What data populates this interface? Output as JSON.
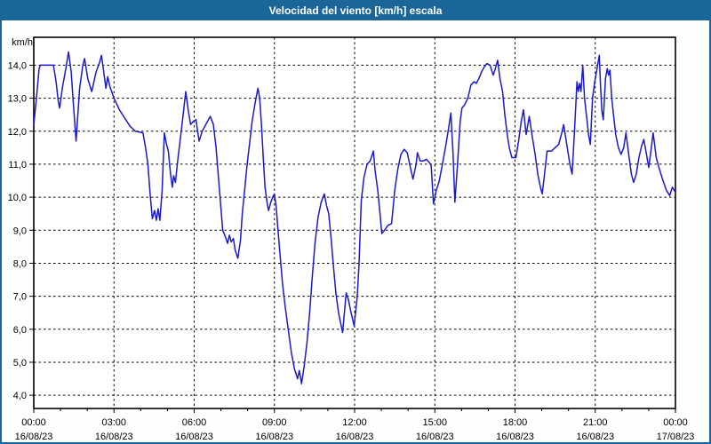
{
  "window": {
    "title": "Velocidad del viento [km/h] escala"
  },
  "colors": {
    "titlebar_bg": "#1b6698",
    "window_border": "#1b6698",
    "content_bg": "#fdfefd",
    "plot_bg": "#ffffff",
    "plot_border": "#000000",
    "grid": "#000000",
    "series_line": "#1a1ac9",
    "label_text": "#000000"
  },
  "chart_data": {
    "type": "line",
    "title": "Velocidad del viento [km/h] escala",
    "ylabel": "km/h",
    "unit_label": "km/h",
    "grid": "dashed",
    "legend": "none",
    "xlim_minutes": [
      0,
      1440
    ],
    "ylim": [
      3.6,
      14.845
    ],
    "y_ticks": [
      {
        "label": "14,0",
        "value": 14.0
      },
      {
        "label": "13,0",
        "value": 13.0
      },
      {
        "label": "12,0",
        "value": 12.0
      },
      {
        "label": "11,0",
        "value": 11.0
      },
      {
        "label": "10,0",
        "value": 10.0
      },
      {
        "label": "9,0",
        "value": 9.0
      },
      {
        "label": "8,0",
        "value": 8.0
      },
      {
        "label": "7,0",
        "value": 7.0
      },
      {
        "label": "6,0",
        "value": 6.0
      },
      {
        "label": "5,0",
        "value": 5.0
      },
      {
        "label": "4,0",
        "value": 4.0
      }
    ],
    "x_ticks": [
      {
        "hour": 0,
        "time": "00:00",
        "date": "16/08/23"
      },
      {
        "hour": 3,
        "time": "03:00",
        "date": "16/08/23"
      },
      {
        "hour": 6,
        "time": "06:00",
        "date": "16/08/23"
      },
      {
        "hour": 9,
        "time": "09:00",
        "date": "16/08/23"
      },
      {
        "hour": 12,
        "time": "12:00",
        "date": "16/08/23"
      },
      {
        "hour": 15,
        "time": "15:00",
        "date": "16/08/23"
      },
      {
        "hour": 18,
        "time": "18:00",
        "date": "16/08/23"
      },
      {
        "hour": 21,
        "time": "21:00",
        "date": "16/08/23"
      },
      {
        "hour": 24,
        "time": "00:00",
        "date": "17/08/23"
      }
    ],
    "minor_x_tick_every_hours": 1,
    "series": [
      {
        "name": "Velocidad del viento",
        "color": "#1a1ac9",
        "points": [
          [
            0,
            12.2
          ],
          [
            6,
            13.0
          ],
          [
            12,
            13.9
          ],
          [
            15,
            14.0
          ],
          [
            44,
            14.0
          ],
          [
            50,
            13.5
          ],
          [
            55,
            12.9
          ],
          [
            58,
            12.7
          ],
          [
            64,
            13.3
          ],
          [
            72,
            13.9
          ],
          [
            78,
            14.4
          ],
          [
            84,
            13.8
          ],
          [
            88,
            13.0
          ],
          [
            95,
            11.7
          ],
          [
            103,
            13.3
          ],
          [
            110,
            14.0
          ],
          [
            114,
            14.2
          ],
          [
            121,
            13.6
          ],
          [
            130,
            13.2
          ],
          [
            140,
            13.8
          ],
          [
            148,
            14.1
          ],
          [
            152,
            14.3
          ],
          [
            158,
            13.7
          ],
          [
            162,
            13.3
          ],
          [
            166,
            13.65
          ],
          [
            171,
            13.35
          ],
          [
            180,
            13.0
          ],
          [
            192,
            12.65
          ],
          [
            204,
            12.4
          ],
          [
            216,
            12.15
          ],
          [
            228,
            12.0
          ],
          [
            245,
            11.95
          ],
          [
            251,
            11.5
          ],
          [
            256,
            11.0
          ],
          [
            261,
            10.1
          ],
          [
            266,
            9.35
          ],
          [
            271,
            9.6
          ],
          [
            275,
            9.3
          ],
          [
            279,
            9.65
          ],
          [
            283,
            9.3
          ],
          [
            288,
            10.2
          ],
          [
            293,
            11.95
          ],
          [
            298,
            11.6
          ],
          [
            302,
            11.4
          ],
          [
            307,
            10.7
          ],
          [
            311,
            10.3
          ],
          [
            314,
            10.65
          ],
          [
            318,
            10.45
          ],
          [
            323,
            11.1
          ],
          [
            330,
            11.9
          ],
          [
            336,
            12.6
          ],
          [
            341,
            13.2
          ],
          [
            347,
            12.6
          ],
          [
            352,
            12.2
          ],
          [
            358,
            12.3
          ],
          [
            364,
            12.35
          ],
          [
            371,
            11.7
          ],
          [
            378,
            12.0
          ],
          [
            390,
            12.3
          ],
          [
            396,
            12.45
          ],
          [
            403,
            12.2
          ],
          [
            409,
            11.5
          ],
          [
            415,
            10.5
          ],
          [
            421,
            9.5
          ],
          [
            424,
            9.0
          ],
          [
            430,
            8.8
          ],
          [
            435,
            8.6
          ],
          [
            439,
            8.85
          ],
          [
            443,
            8.65
          ],
          [
            448,
            8.75
          ],
          [
            452,
            8.4
          ],
          [
            458,
            8.15
          ],
          [
            464,
            8.7
          ],
          [
            468,
            9.5
          ],
          [
            473,
            10.2
          ],
          [
            478,
            10.9
          ],
          [
            484,
            11.6
          ],
          [
            490,
            12.3
          ],
          [
            496,
            12.8
          ],
          [
            503,
            13.3
          ],
          [
            507,
            13.0
          ],
          [
            511,
            12.2
          ],
          [
            515,
            11.2
          ],
          [
            519,
            10.3
          ],
          [
            524,
            9.8
          ],
          [
            527,
            9.6
          ],
          [
            532,
            9.85
          ],
          [
            538,
            10.05
          ],
          [
            540,
            10.1
          ],
          [
            544,
            9.7
          ],
          [
            548,
            9.0
          ],
          [
            553,
            8.2
          ],
          [
            558,
            7.4
          ],
          [
            564,
            6.7
          ],
          [
            571,
            6.0
          ],
          [
            578,
            5.3
          ],
          [
            585,
            4.8
          ],
          [
            592,
            4.5
          ],
          [
            596,
            4.75
          ],
          [
            601,
            4.35
          ],
          [
            607,
            4.9
          ],
          [
            613,
            5.6
          ],
          [
            619,
            6.5
          ],
          [
            625,
            7.6
          ],
          [
            631,
            8.6
          ],
          [
            638,
            9.4
          ],
          [
            645,
            9.85
          ],
          [
            652,
            10.1
          ],
          [
            657,
            9.75
          ],
          [
            662,
            9.5
          ],
          [
            667,
            8.8
          ],
          [
            672,
            8.0
          ],
          [
            678,
            7.1
          ],
          [
            684,
            6.5
          ],
          [
            693,
            5.9
          ],
          [
            701,
            7.1
          ],
          [
            706,
            6.9
          ],
          [
            712,
            6.5
          ],
          [
            719,
            6.1
          ],
          [
            726,
            7.0
          ],
          [
            730,
            8.0
          ],
          [
            735,
            9.9
          ],
          [
            741,
            10.6
          ],
          [
            748,
            11.0
          ],
          [
            755,
            11.1
          ],
          [
            762,
            11.4
          ],
          [
            766,
            10.8
          ],
          [
            772,
            10.2
          ],
          [
            777,
            9.5
          ],
          [
            781,
            8.9
          ],
          [
            787,
            9.0
          ],
          [
            795,
            9.15
          ],
          [
            803,
            9.2
          ],
          [
            810,
            10.2
          ],
          [
            817,
            10.85
          ],
          [
            824,
            11.3
          ],
          [
            831,
            11.45
          ],
          [
            838,
            11.35
          ],
          [
            845,
            10.9
          ],
          [
            851,
            10.55
          ],
          [
            858,
            11.0
          ],
          [
            861,
            11.35
          ],
          [
            867,
            11.1
          ],
          [
            874,
            11.1
          ],
          [
            881,
            11.15
          ],
          [
            888,
            11.05
          ],
          [
            892,
            10.95
          ],
          [
            897,
            9.8
          ],
          [
            903,
            10.2
          ],
          [
            910,
            10.5
          ],
          [
            917,
            11.0
          ],
          [
            925,
            11.6
          ],
          [
            931,
            12.1
          ],
          [
            936,
            12.55
          ],
          [
            941,
            11.3
          ],
          [
            945,
            9.85
          ],
          [
            951,
            11.0
          ],
          [
            957,
            12.3
          ],
          [
            961,
            12.7
          ],
          [
            967,
            12.8
          ],
          [
            974,
            13.0
          ],
          [
            981,
            13.4
          ],
          [
            988,
            13.5
          ],
          [
            993,
            13.45
          ],
          [
            999,
            13.6
          ],
          [
            1005,
            13.8
          ],
          [
            1011,
            13.95
          ],
          [
            1017,
            14.05
          ],
          [
            1024,
            14.0
          ],
          [
            1031,
            13.7
          ],
          [
            1036,
            13.9
          ],
          [
            1041,
            14.15
          ],
          [
            1046,
            13.6
          ],
          [
            1052,
            13.2
          ],
          [
            1057,
            12.5
          ],
          [
            1062,
            11.95
          ],
          [
            1067,
            11.5
          ],
          [
            1073,
            11.2
          ],
          [
            1082,
            11.2
          ],
          [
            1088,
            11.7
          ],
          [
            1094,
            12.3
          ],
          [
            1099,
            12.65
          ],
          [
            1105,
            11.9
          ],
          [
            1112,
            12.45
          ],
          [
            1119,
            11.8
          ],
          [
            1125,
            11.3
          ],
          [
            1131,
            10.7
          ],
          [
            1137,
            10.3
          ],
          [
            1141,
            10.1
          ],
          [
            1147,
            10.8
          ],
          [
            1152,
            11.4
          ],
          [
            1162,
            11.4
          ],
          [
            1170,
            11.5
          ],
          [
            1178,
            11.6
          ],
          [
            1184,
            11.9
          ],
          [
            1189,
            12.2
          ],
          [
            1196,
            11.6
          ],
          [
            1203,
            11.0
          ],
          [
            1208,
            10.7
          ],
          [
            1213,
            11.9
          ],
          [
            1219,
            13.5
          ],
          [
            1222,
            13.2
          ],
          [
            1225,
            13.45
          ],
          [
            1228,
            13.2
          ],
          [
            1232,
            14.0
          ],
          [
            1236,
            13.0
          ],
          [
            1241,
            12.4
          ],
          [
            1245,
            11.9
          ],
          [
            1249,
            11.6
          ],
          [
            1254,
            13.0
          ],
          [
            1259,
            13.5
          ],
          [
            1264,
            13.9
          ],
          [
            1269,
            14.3
          ],
          [
            1272,
            13.3
          ],
          [
            1275,
            12.6
          ],
          [
            1278,
            12.35
          ],
          [
            1283,
            13.6
          ],
          [
            1287,
            13.9
          ],
          [
            1290,
            13.7
          ],
          [
            1293,
            13.85
          ],
          [
            1297,
            13.0
          ],
          [
            1301,
            12.5
          ],
          [
            1306,
            11.9
          ],
          [
            1312,
            11.5
          ],
          [
            1318,
            11.3
          ],
          [
            1324,
            11.5
          ],
          [
            1329,
            11.95
          ],
          [
            1335,
            11.3
          ],
          [
            1341,
            10.7
          ],
          [
            1346,
            10.45
          ],
          [
            1352,
            10.7
          ],
          [
            1358,
            11.2
          ],
          [
            1364,
            11.55
          ],
          [
            1369,
            11.75
          ],
          [
            1375,
            11.3
          ],
          [
            1380,
            10.9
          ],
          [
            1385,
            11.4
          ],
          [
            1390,
            11.95
          ],
          [
            1397,
            11.2
          ],
          [
            1403,
            10.9
          ],
          [
            1412,
            10.5
          ],
          [
            1420,
            10.2
          ],
          [
            1427,
            10.05
          ],
          [
            1433,
            10.3
          ],
          [
            1440,
            10.15
          ]
        ]
      }
    ]
  }
}
